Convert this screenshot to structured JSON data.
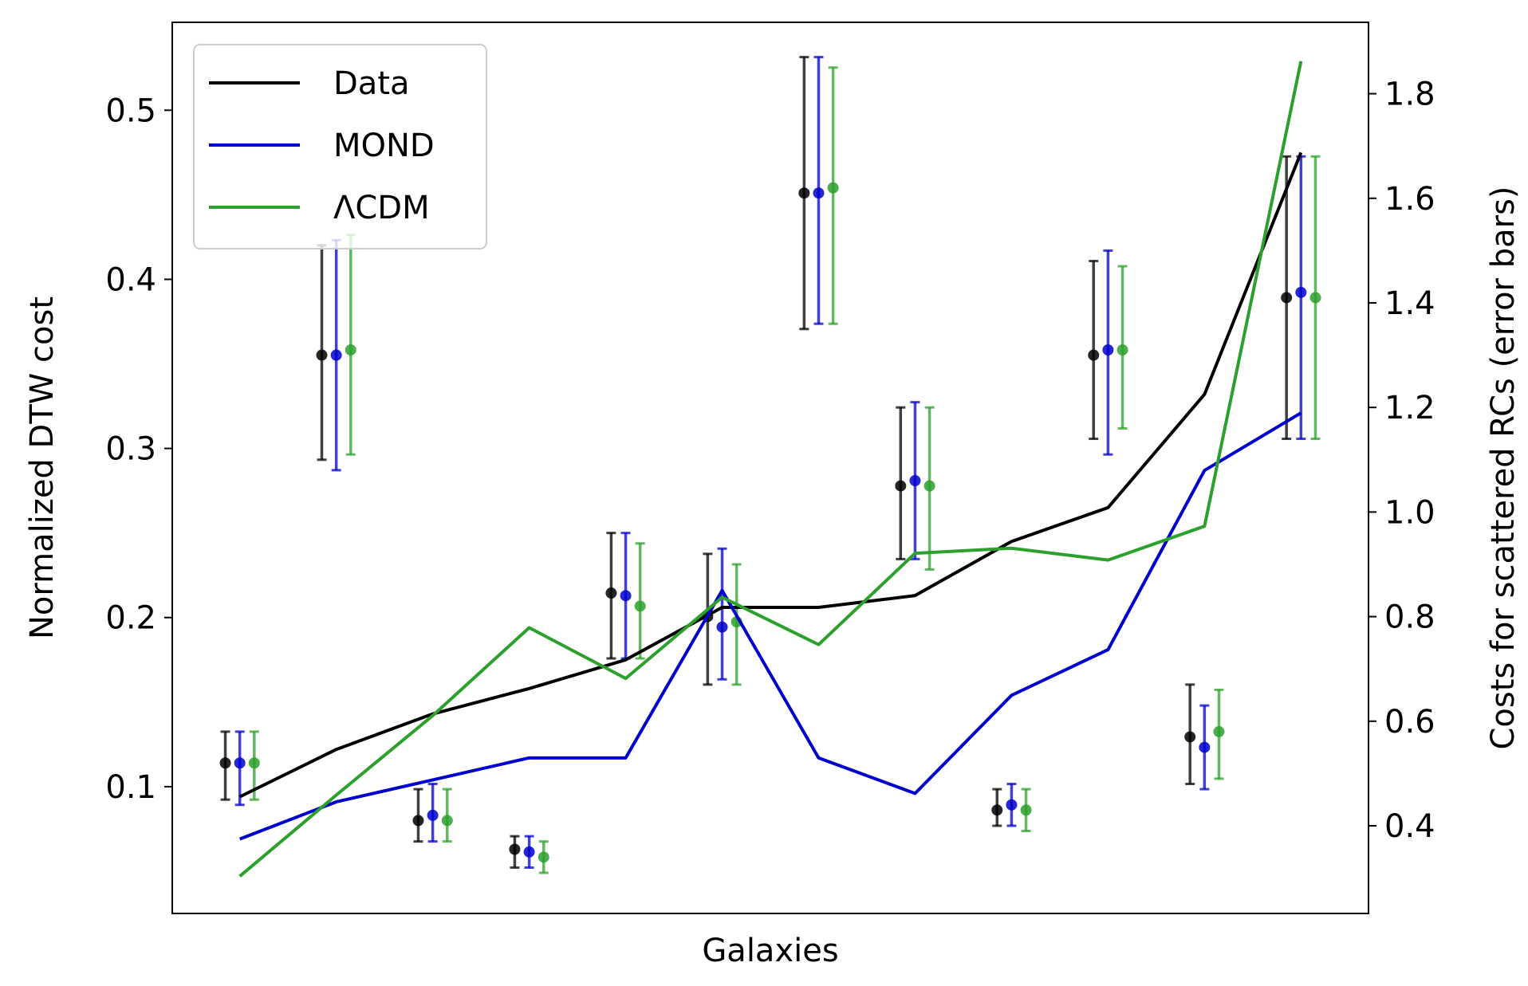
{
  "chart_data": {
    "type": "line",
    "xlabel": "Galaxies",
    "ylabel": "Normalized DTW cost",
    "y2label": "Costs for scattered RCs (error bars)",
    "ylim": [
      0.025,
      0.552
    ],
    "y2lim": [
      0.2323,
      1.9365
    ],
    "yticks": [
      0.1,
      0.2,
      0.3,
      0.4,
      0.5
    ],
    "yticklabels": [
      "0.1",
      "0.2",
      "0.3",
      "0.4",
      "0.5"
    ],
    "y2ticks": [
      0.4,
      0.6,
      0.8,
      1.0,
      1.2,
      1.4,
      1.6,
      1.8
    ],
    "y2ticklabels": [
      "0.4",
      "0.6",
      "0.8",
      "1.0",
      "1.2",
      "1.4",
      "1.6",
      "1.8"
    ],
    "xlim": [
      -0.7,
      11.7
    ],
    "grid": false,
    "legend_position": "upper-left",
    "x": [
      0,
      1,
      2,
      3,
      4,
      5,
      6,
      7,
      8,
      9,
      10,
      11
    ],
    "series": [
      {
        "name": "Data",
        "color": "#000000",
        "values": [
          0.094,
          0.122,
          0.143,
          0.158,
          0.175,
          0.206,
          0.206,
          0.213,
          0.245,
          0.265,
          0.332,
          0.475
        ]
      },
      {
        "name": "MOND",
        "color": "#0000cc",
        "values": [
          0.069,
          0.091,
          0.104,
          0.117,
          0.117,
          0.216,
          0.117,
          0.096,
          0.154,
          0.181,
          0.287,
          0.321
        ]
      },
      {
        "name": "ΛCDM",
        "color": "#2ca02c",
        "values": [
          0.047,
          0.095,
          0.142,
          0.194,
          0.164,
          0.212,
          0.184,
          0.238,
          0.241,
          0.234,
          0.254,
          0.529
        ]
      }
    ],
    "errorbars": {
      "axis": "right",
      "groups": [
        {
          "name": "Data",
          "color": "#000000",
          "offset": -0.15,
          "values": [
            0.52,
            1.3,
            0.41,
            0.355,
            0.845,
            0.8,
            1.61,
            1.05,
            0.43,
            1.3,
            0.57,
            1.41
          ],
          "lower": [
            0.45,
            1.1,
            0.37,
            0.32,
            0.72,
            0.67,
            1.35,
            0.91,
            0.4,
            1.14,
            0.48,
            1.14
          ],
          "upper": [
            0.58,
            1.51,
            0.47,
            0.38,
            0.96,
            0.92,
            1.87,
            1.2,
            0.47,
            1.48,
            0.67,
            1.68
          ]
        },
        {
          "name": "MOND",
          "color": "#0000cc",
          "offset": 0.0,
          "values": [
            0.52,
            1.3,
            0.42,
            0.35,
            0.84,
            0.78,
            1.61,
            1.06,
            0.44,
            1.31,
            0.55,
            1.42
          ],
          "lower": [
            0.44,
            1.08,
            0.37,
            0.32,
            0.72,
            0.68,
            1.36,
            0.91,
            0.4,
            1.11,
            0.47,
            1.14
          ],
          "upper": [
            0.58,
            1.52,
            0.48,
            0.38,
            0.96,
            0.93,
            1.87,
            1.21,
            0.48,
            1.5,
            0.63,
            1.68
          ]
        },
        {
          "name": "ΛCDM",
          "color": "#2ca02c",
          "offset": 0.15,
          "values": [
            0.52,
            1.31,
            0.41,
            0.34,
            0.82,
            0.79,
            1.62,
            1.05,
            0.43,
            1.31,
            0.58,
            1.41
          ],
          "lower": [
            0.45,
            1.11,
            0.37,
            0.31,
            0.72,
            0.67,
            1.36,
            0.89,
            0.39,
            1.16,
            0.49,
            1.14
          ],
          "upper": [
            0.58,
            1.53,
            0.47,
            0.37,
            0.94,
            0.9,
            1.85,
            1.2,
            0.47,
            1.47,
            0.66,
            1.68
          ]
        }
      ]
    }
  }
}
